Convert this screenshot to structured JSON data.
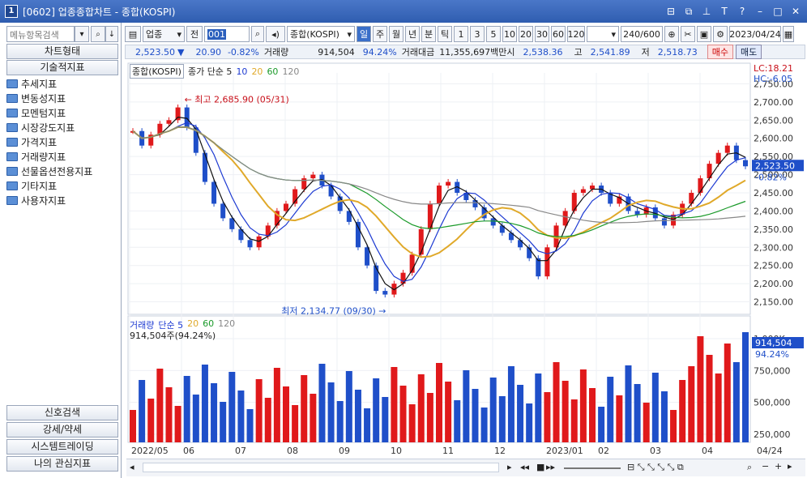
{
  "window": {
    "title": "[0602] 업종종합차트 - 종합(KOSPI)",
    "icon": "1",
    "buttons": [
      "layout-icon",
      "restore-icon",
      "pin-icon",
      "font-icon",
      "help-icon",
      "minimize-icon",
      "maximize-icon",
      "close-icon"
    ]
  },
  "left_panel": {
    "search_placeholder": "메뉴항목검색",
    "tabs": [
      "차트형태",
      "기술적지표"
    ],
    "tree": [
      "추세지표",
      "변동성지표",
      "모멘텀지표",
      "시장강도지표",
      "가격지표",
      "거래량지표",
      "선물옵션전용지표",
      "기타지표",
      "사용자지표"
    ],
    "bottom_tabs": [
      "신호검색",
      "강세/약세",
      "시스템트레이딩",
      "나의 관심지표"
    ]
  },
  "toolbar": {
    "category": "업종",
    "mode": "전",
    "code": "001",
    "name": "종합(KOSPI)",
    "periods": [
      "일",
      "주",
      "월",
      "년",
      "분",
      "틱"
    ],
    "selected_period": "일",
    "intervals": [
      "1",
      "3",
      "5",
      "10",
      "20",
      "30",
      "60",
      "120"
    ],
    "count": "240/600",
    "date": "2023/04/24"
  },
  "infobar": {
    "price": "2,523.50",
    "change": "20.90",
    "rate": "-0.82%",
    "volume_label": "거래량",
    "volume": "914,504",
    "volume_rate": "94.24%",
    "amount_label": "거래대금",
    "amount": "11,355,697백만",
    "open_label": "시",
    "open": "2,538.36",
    "high_label": "고",
    "high": "2,541.89",
    "low_label": "저",
    "low": "2,518.73",
    "buy": "매수",
    "sell": "매도"
  },
  "chart_legend": {
    "name": "종합(KOSPI)",
    "ma_label": "종가 단순 5",
    "ma_periods": [
      "10",
      "20",
      "60",
      "120"
    ],
    "high_note": "최고 2,685.90 (05/31)",
    "low_note": "최저 2,134.77 (09/30)",
    "lc": "LC:18.21",
    "hc": "HC:-6.05",
    "current_tag": "2,523.50",
    "current_rate": "-0.82%"
  },
  "volume_legend": {
    "name": "거래량",
    "ma_label": "단순 5",
    "ma_periods": [
      "20",
      "60",
      "120"
    ],
    "info": "914,504주(94.24%)",
    "tag": "914,504",
    "tag_rate": "94.24%"
  },
  "price_axis": [
    "2,750.00",
    "2,700.00",
    "2,650.00",
    "2,600.00",
    "2,550.00",
    "2,500.00",
    "2,450.00",
    "2,400.00",
    "2,350.00",
    "2,300.00",
    "2,250.00",
    "2,200.00",
    "2,150.00"
  ],
  "volume_axis": [
    "1,000K",
    "750,000",
    "500,000",
    "250,000"
  ],
  "date_axis": [
    "2022/05",
    "06",
    "07",
    "08",
    "09",
    "10",
    "11",
    "12",
    "2023/01",
    "02",
    "03",
    "04"
  ],
  "last_date": "04/24",
  "colors": {
    "up": "#e0191b",
    "down": "#1f4fc9",
    "ma5": "#111111",
    "ma10": "#1d3ad2",
    "ma20": "#e0a92a",
    "ma60": "#1b9a2a",
    "ma120": "#888888"
  },
  "chart_data": {
    "type": "line",
    "title": "종합(KOSPI)",
    "series": [
      {
        "name": "종합(KOSPI)",
        "values": [
          2620,
          2580,
          2610,
          2640,
          2650,
          2685,
          2630,
          2560,
          2480,
          2420,
          2380,
          2350,
          2320,
          2300,
          2330,
          2360,
          2400,
          2420,
          2460,
          2490,
          2500,
          2470,
          2440,
          2400,
          2370,
          2300,
          2250,
          2180,
          2170,
          2200,
          2230,
          2280,
          2350,
          2420,
          2470,
          2480,
          2450,
          2430,
          2410,
          2380,
          2360,
          2340,
          2320,
          2300,
          2270,
          2220,
          2300,
          2360,
          2400,
          2450,
          2460,
          2470,
          2450,
          2420,
          2440,
          2400,
          2390,
          2410,
          2380,
          2360,
          2390,
          2420,
          2450,
          2490,
          2530,
          2560,
          2580,
          2540,
          2523
        ]
      }
    ],
    "xlabel": "",
    "ylabel": "",
    "ylim": [
      2120,
      2780
    ]
  }
}
